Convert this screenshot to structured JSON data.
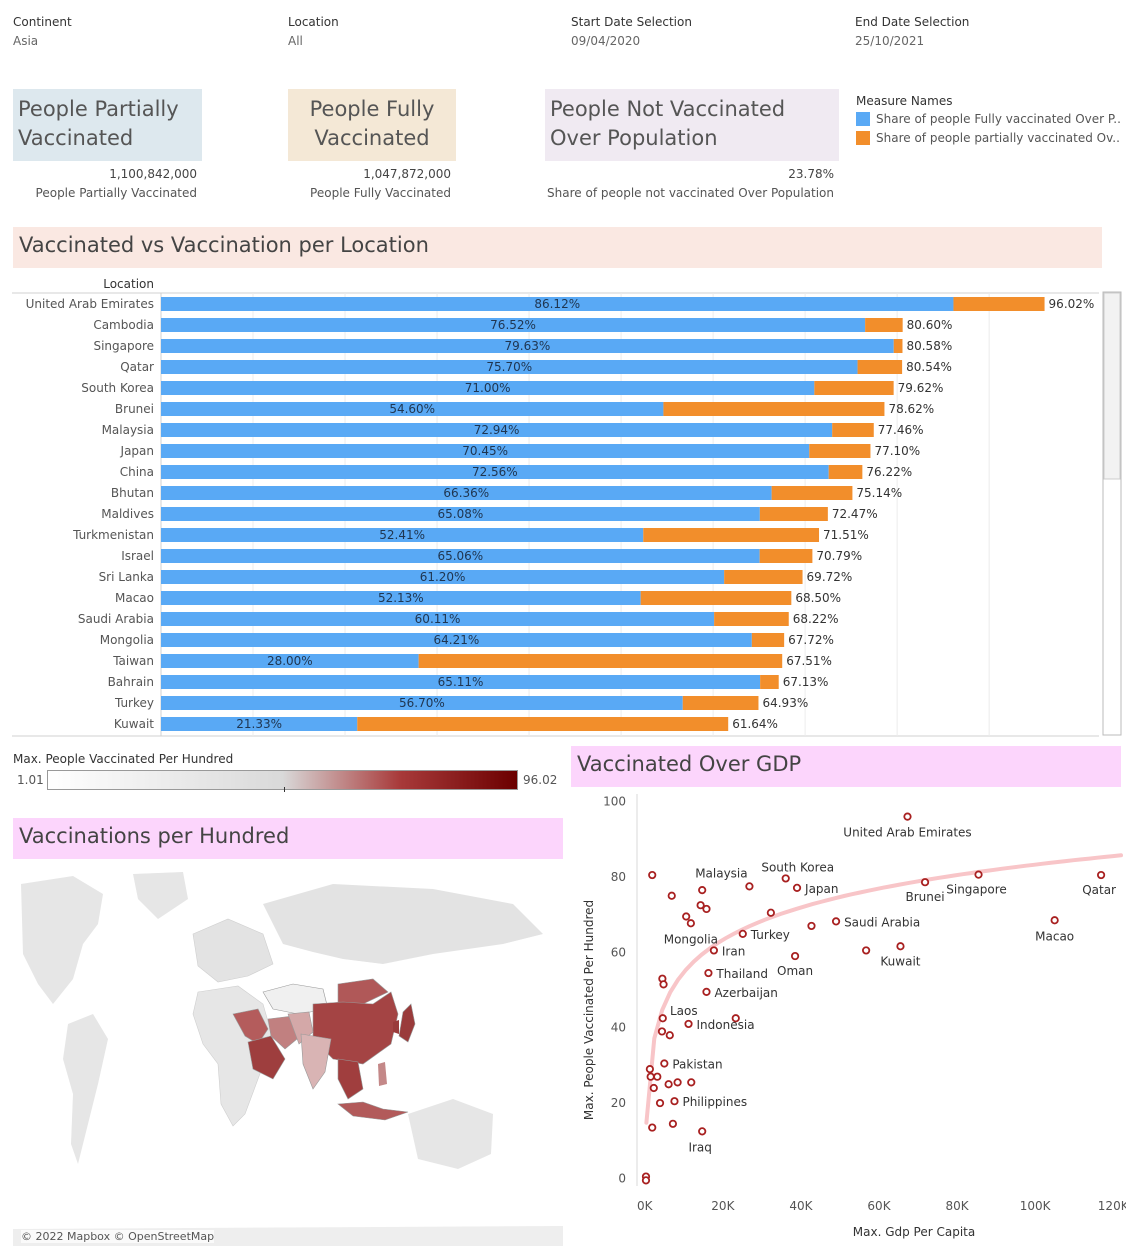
{
  "filters": [
    {
      "title": "Continent",
      "value": "Asia"
    },
    {
      "title": "Location",
      "value": "All"
    },
    {
      "title": "Start Date Selection",
      "value": "09/04/2020"
    },
    {
      "title": "End Date Selection",
      "value": "25/10/2021"
    }
  ],
  "kpis": [
    {
      "title": "People Partially Vaccinated",
      "value": "1,100,842,000",
      "label": "People Partially Vaccinated",
      "color": "#dde8ee"
    },
    {
      "title": "People Fully Vaccinated",
      "value": "1,047,872,000",
      "label": "People Fully Vaccinated",
      "color": "#f4e8d6"
    },
    {
      "title": "People Not Vaccinated Over Population",
      "value": "23.78%",
      "label": "Share of people not vaccinated Over Population",
      "color": "#f0eaf2"
    }
  ],
  "measure_legend": {
    "title": "Measure Names",
    "items": [
      {
        "label": "Share of people Fully vaccinated Over P..",
        "color": "#59a9f5"
      },
      {
        "label": "Share of people partially vaccinated Ov..",
        "color": "#f28e2b"
      }
    ]
  },
  "bar_section": {
    "title": "Vaccinated vs Vaccination per Location",
    "header_color": "#fae8e2"
  },
  "map_section": {
    "title": "Vaccinations per Hundred",
    "header_color": "#fcd5fc",
    "legend_title": "Max. People Vaccinated Per Hundred",
    "legend_min": "1.01",
    "legend_max": "96.02",
    "attribution": "© 2022 Mapbox © OpenStreetMap"
  },
  "scatter_section": {
    "title": "Vaccinated Over GDP",
    "header_color": "#fcd5fc"
  },
  "chart_data": [
    {
      "type": "bar",
      "stacked": true,
      "orientation": "horizontal",
      "xlabel": "",
      "ylabel": "Location",
      "xlim": [
        0,
        100
      ],
      "categories": [
        "United Arab Emirates",
        "Cambodia",
        "Singapore",
        "Qatar",
        "South Korea",
        "Brunei",
        "Malaysia",
        "Japan",
        "China",
        "Bhutan",
        "Maldives",
        "Turkmenistan",
        "Israel",
        "Sri Lanka",
        "Macao",
        "Saudi Arabia",
        "Mongolia",
        "Taiwan",
        "Bahrain",
        "Turkey",
        "Kuwait"
      ],
      "series": [
        {
          "name": "Share of people Fully vaccinated Over P..",
          "color": "#59a9f5",
          "values": [
            86.12,
            76.52,
            79.63,
            75.7,
            71.0,
            54.6,
            72.94,
            70.45,
            72.56,
            66.36,
            65.08,
            52.41,
            65.06,
            61.2,
            52.13,
            60.11,
            64.21,
            28.0,
            65.11,
            56.7,
            21.33
          ]
        },
        {
          "name": "Share of people partially vaccinated Ov..",
          "color": "#f28e2b",
          "values": [
            9.9,
            4.08,
            0.95,
            4.84,
            8.62,
            24.02,
            4.52,
            6.65,
            3.66,
            8.78,
            7.39,
            19.1,
            5.73,
            8.52,
            16.37,
            8.11,
            3.51,
            39.51,
            2.02,
            8.23,
            40.31
          ]
        }
      ],
      "inner_labels": [
        "86.12%",
        "76.52%",
        "79.63%",
        "75.70%",
        "71.00%",
        "54.60%",
        "72.94%",
        "70.45%",
        "72.56%",
        "66.36%",
        "65.08%",
        "52.41%",
        "65.06%",
        "61.20%",
        "52.13%",
        "60.11%",
        "64.21%",
        "28.00%",
        "65.11%",
        "56.70%",
        "21.33%"
      ],
      "total_labels": [
        "96.02%",
        "80.60%",
        "80.58%",
        "80.54%",
        "79.62%",
        "78.62%",
        "77.46%",
        "77.10%",
        "76.22%",
        "75.14%",
        "72.47%",
        "71.51%",
        "70.79%",
        "69.72%",
        "68.50%",
        "68.22%",
        "67.72%",
        "67.51%",
        "67.13%",
        "64.93%",
        "61.64%"
      ]
    },
    {
      "type": "scatter",
      "xlabel": "Max. Gdp Per Capita",
      "ylabel": "Max. People Vaccinated Per Hundred",
      "xlim": [
        -2000,
        122000
      ],
      "ylim": [
        -2,
        102
      ],
      "x_ticks": [
        "0K",
        "20K",
        "40K",
        "60K",
        "80K",
        "100K",
        "120K"
      ],
      "x_tick_values": [
        0,
        20000,
        40000,
        60000,
        80000,
        100000,
        120000
      ],
      "y_ticks": [
        "0",
        "20",
        "40",
        "60",
        "80",
        "100"
      ],
      "y_tick_values": [
        0,
        20,
        40,
        60,
        80,
        100
      ],
      "trend_color": "#f8c5c8",
      "point_color": "#a82020",
      "points": [
        {
          "x": 67300,
          "y": 96.0,
          "label": "United Arab Emirates"
        },
        {
          "x": 116900,
          "y": 80.5,
          "label": "Qatar"
        },
        {
          "x": 85500,
          "y": 80.6,
          "label": "Singapore"
        },
        {
          "x": 71800,
          "y": 78.6,
          "label": "Brunei"
        },
        {
          "x": 105000,
          "y": 68.5,
          "label": "Macao"
        },
        {
          "x": 36100,
          "y": 79.6,
          "label": "South Korea"
        },
        {
          "x": 39000,
          "y": 77.1,
          "label": "Japan"
        },
        {
          "x": 26800,
          "y": 77.5,
          "label": "Malaysia"
        },
        {
          "x": 49000,
          "y": 68.2,
          "label": "Saudi Arabia"
        },
        {
          "x": 65500,
          "y": 61.6,
          "label": "Kuwait"
        },
        {
          "x": 38500,
          "y": 59.0,
          "label": "Oman"
        },
        {
          "x": 25100,
          "y": 64.9,
          "label": "Turkey"
        },
        {
          "x": 11800,
          "y": 67.7,
          "label": "Mongolia"
        },
        {
          "x": 17700,
          "y": 60.5,
          "label": "Iran"
        },
        {
          "x": 16300,
          "y": 54.5,
          "label": "Thailand"
        },
        {
          "x": 15800,
          "y": 49.5,
          "label": "Azerbaijan"
        },
        {
          "x": 6400,
          "y": 38.0,
          "label": "Laos"
        },
        {
          "x": 11200,
          "y": 41.0,
          "label": "Indonesia"
        },
        {
          "x": 5000,
          "y": 30.5,
          "label": "Pakistan"
        },
        {
          "x": 7600,
          "y": 20.5,
          "label": "Philippines"
        },
        {
          "x": 14700,
          "y": 12.5,
          "label": "Iraq"
        },
        {
          "x": 1900,
          "y": 80.5,
          "label": ""
        },
        {
          "x": 6900,
          "y": 75.0,
          "label": ""
        },
        {
          "x": 14700,
          "y": 76.5,
          "label": ""
        },
        {
          "x": 14300,
          "y": 72.5,
          "label": ""
        },
        {
          "x": 15800,
          "y": 71.5,
          "label": ""
        },
        {
          "x": 10600,
          "y": 69.5,
          "label": ""
        },
        {
          "x": 32300,
          "y": 70.5,
          "label": ""
        },
        {
          "x": 42700,
          "y": 67.0,
          "label": ""
        },
        {
          "x": 56700,
          "y": 60.5,
          "label": ""
        },
        {
          "x": 4500,
          "y": 53.0,
          "label": ""
        },
        {
          "x": 4800,
          "y": 51.5,
          "label": ""
        },
        {
          "x": 4600,
          "y": 42.5,
          "label": ""
        },
        {
          "x": 4400,
          "y": 39.0,
          "label": ""
        },
        {
          "x": 23300,
          "y": 42.5,
          "label": ""
        },
        {
          "x": 1300,
          "y": 29.0,
          "label": ""
        },
        {
          "x": 1500,
          "y": 27.0,
          "label": ""
        },
        {
          "x": 3200,
          "y": 27.0,
          "label": ""
        },
        {
          "x": 2300,
          "y": 24.0,
          "label": ""
        },
        {
          "x": 6100,
          "y": 25.0,
          "label": ""
        },
        {
          "x": 8400,
          "y": 25.5,
          "label": ""
        },
        {
          "x": 11900,
          "y": 25.5,
          "label": ""
        },
        {
          "x": 3900,
          "y": 20.0,
          "label": ""
        },
        {
          "x": 1900,
          "y": 13.5,
          "label": ""
        },
        {
          "x": 7200,
          "y": 14.5,
          "label": ""
        },
        {
          "x": 300,
          "y": 0.5,
          "label": ""
        },
        {
          "x": 300,
          "y": -0.5,
          "label": ""
        }
      ]
    },
    {
      "type": "map",
      "value_range": [
        1.01,
        96.02
      ]
    }
  ]
}
